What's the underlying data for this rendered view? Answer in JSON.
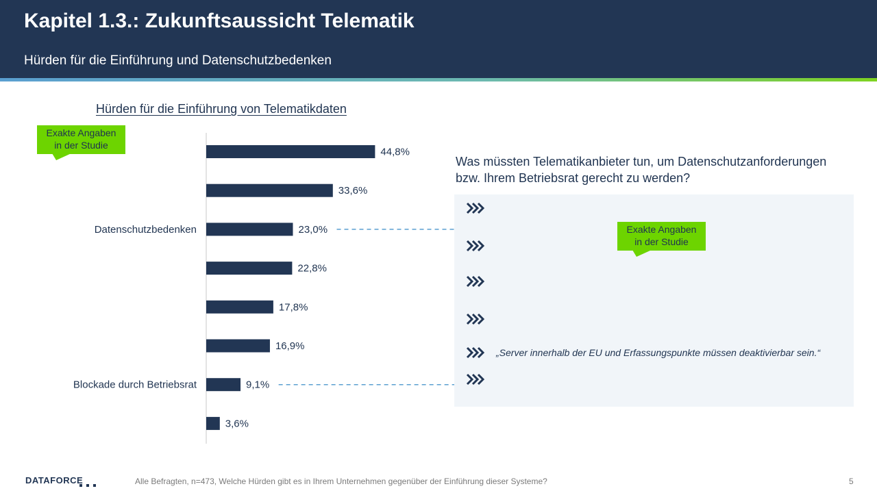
{
  "header": {
    "title": "Kapitel 1.3.: Zukunftsaussicht Telematik",
    "subtitle": "Hürden für die Einführung und Datenschutzbedenken"
  },
  "callouts": {
    "left": "Exakte Angaben in der Studie",
    "right": "Exakte Angaben in der Studie"
  },
  "colors": {
    "navy": "#223654",
    "bar": "#223654",
    "green": "#6dd400",
    "dashed": "#5a9fd0",
    "quote_bg": "#f1f5f9"
  },
  "chart_data": {
    "type": "bar",
    "orientation": "horizontal",
    "title": "Hürden für die Einführung von Telematikdaten",
    "categories": [
      "",
      "",
      "Datenschutzbedenken",
      "",
      "",
      "",
      "Blockade durch Betriebsrat",
      ""
    ],
    "values": [
      44.8,
      33.6,
      23.0,
      22.8,
      17.8,
      16.9,
      9.1,
      3.6
    ],
    "value_labels": [
      "44,8%",
      "33,6%",
      "23,0%",
      "22,8%",
      "17,8%",
      "16,9%",
      "9,1%",
      "3,6%"
    ],
    "xlim": [
      0,
      100
    ],
    "grid": false,
    "legend": "none"
  },
  "right_panel": {
    "question": "Was müssten Telematikanbieter tun, um Datenschutzanforderungen bzw. Ihrem Betriebsrat gerecht zu werden?",
    "quote": "„Server innerhalb der EU und Erfassungspunkte müssen deaktivierbar sein.“",
    "chevron_icon": "triple-chevron-icon"
  },
  "footer": {
    "logo": "DATAFORCE",
    "note": "Alle Befragten, n=473, Welche Hürden gibt es in Ihrem Unternehmen gegenüber der Einführung dieser Systeme?",
    "page": "5"
  }
}
